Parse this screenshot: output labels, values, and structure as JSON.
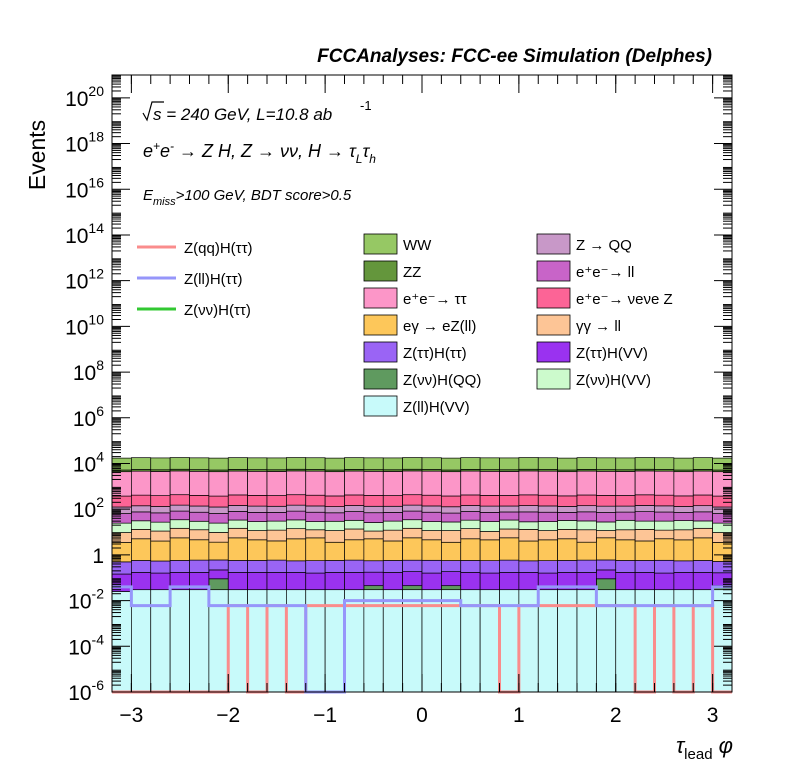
{
  "chart_data": {
    "type": "bar",
    "title": "FCCAnalyses: FCC-ee Simulation (Delphes)",
    "xlabel": "τ_lead φ",
    "ylabel": "Events",
    "yscale": "log",
    "xlim": [
      -3.2,
      3.2
    ],
    "ylim": [
      1e-06,
      1e+21
    ],
    "xticks": [
      "−3",
      "−2",
      "−1",
      "0",
      "1",
      "2",
      "3"
    ],
    "yticks": [
      {
        "base": "10",
        "exp": "-6",
        "value": 1e-06
      },
      {
        "base": "10",
        "exp": "-4",
        "value": 0.0001
      },
      {
        "base": "10",
        "exp": "-2",
        "value": 0.01
      },
      {
        "base": "1",
        "exp": "",
        "value": 1
      },
      {
        "base": "10",
        "exp": "2",
        "value": 100.0
      },
      {
        "base": "10",
        "exp": "4",
        "value": 10000.0
      },
      {
        "base": "10",
        "exp": "6",
        "value": 1000000.0
      },
      {
        "base": "10",
        "exp": "8",
        "value": 100000000.0
      },
      {
        "base": "10",
        "exp": "10",
        "value": 10000000000.0
      },
      {
        "base": "10",
        "exp": "12",
        "value": 1000000000000.0
      },
      {
        "base": "10",
        "exp": "14",
        "value": 100000000000000.0
      },
      {
        "base": "10",
        "exp": "16",
        "value": 1e+16
      },
      {
        "base": "10",
        "exp": "18",
        "value": 1e+18
      },
      {
        "base": "10",
        "exp": "20",
        "value": 1e+20
      }
    ],
    "annotations": [
      "√s = 240 GeV, L=10.8 ab⁻¹",
      "e⁺e⁻ → Z H, Z → νν, H → τ_L τ_h",
      "E_miss>100 GeV, BDT score>0.5"
    ],
    "x_bin_edges": [
      -3.2,
      -3.0,
      -2.8,
      -2.6,
      -2.4,
      -2.2,
      -2.0,
      -1.8,
      -1.6,
      -1.4,
      -1.2,
      -1.0,
      -0.8,
      -0.6,
      -0.4,
      -0.2,
      0.0,
      0.2,
      0.4,
      0.6,
      0.8,
      1.0,
      1.2,
      1.4,
      1.6,
      1.8,
      2.0,
      2.2,
      2.4,
      2.6,
      2.8,
      3.0,
      3.2
    ],
    "stack_order": [
      "Z(ll)H(VV)",
      "Z(νν)H(QQ)",
      "Z(ττ)H(VV)",
      "Z(ττ)H(ττ)",
      "eγ → eZ(ll)",
      "γγ → ll",
      "Z(νν)H(VV)",
      "e⁺e⁻→ ll",
      "Z → QQ",
      "e⁺e⁻→ νeνe Z",
      "e⁺e⁻→ ττ",
      "ZZ",
      "WW"
    ],
    "stacked_series": [
      {
        "name": "Z(ll)H(VV)",
        "color": "#c8fafa",
        "values": [
          0.025,
          0.03,
          0.03,
          0.03,
          0.03,
          0.03,
          0.03,
          0.03,
          0.03,
          0.03,
          0.03,
          0.03,
          0.03,
          0.03,
          0.03,
          0.03,
          0.03,
          0.03,
          0.03,
          0.03,
          0.03,
          0.03,
          0.03,
          0.03,
          0.03,
          0.03,
          0.03,
          0.03,
          0.03,
          0.03,
          0.03,
          0.03
        ]
      },
      {
        "name": "Z(νν)H(QQ)",
        "color": "#5f9a5f",
        "values": [
          0,
          0,
          0,
          0,
          0,
          0.06,
          0,
          0,
          0,
          0,
          0,
          0,
          0,
          0.015,
          0,
          0.015,
          0,
          0.015,
          0,
          0,
          0,
          0,
          0,
          0,
          0,
          0.06,
          0,
          0,
          0,
          0,
          0,
          0.015
        ]
      },
      {
        "name": "Z(ττ)H(VV)",
        "color": "#9a32f0",
        "values": [
          0.12,
          0.14,
          0.13,
          0.14,
          0.14,
          0.13,
          0.14,
          0.14,
          0.14,
          0.14,
          0.13,
          0.14,
          0.14,
          0.13,
          0.14,
          0.14,
          0.13,
          0.14,
          0.14,
          0.13,
          0.14,
          0.14,
          0.13,
          0.14,
          0.14,
          0.13,
          0.14,
          0.14,
          0.13,
          0.14,
          0.14,
          0.12
        ]
      },
      {
        "name": "Z(ττ)H(ττ)",
        "color": "#9a64f5",
        "values": [
          0.35,
          0.4,
          0.38,
          0.4,
          0.42,
          0.38,
          0.4,
          0.4,
          0.42,
          0.38,
          0.4,
          0.4,
          0.42,
          0.38,
          0.4,
          0.4,
          0.42,
          0.38,
          0.4,
          0.4,
          0.42,
          0.38,
          0.4,
          0.4,
          0.42,
          0.38,
          0.4,
          0.4,
          0.42,
          0.38,
          0.4,
          0.35
        ]
      },
      {
        "name": "eγ → eZ(ll)",
        "color": "#fdc75a",
        "values": [
          3,
          4.5,
          3.5,
          5,
          4,
          3,
          5,
          4,
          3.5,
          4.5,
          5,
          3,
          4,
          4.5,
          3.5,
          5,
          4,
          3,
          4.5,
          4,
          5,
          3.5,
          4,
          4.5,
          3,
          5,
          4,
          3.5,
          4.5,
          4,
          5,
          3
        ]
      },
      {
        "name": "γγ → ll",
        "color": "#fdc596",
        "values": [
          6,
          8,
          7,
          9,
          8,
          6,
          9,
          7,
          8,
          9,
          7,
          8,
          9,
          6,
          8,
          9,
          7,
          8,
          9,
          6,
          8,
          9,
          7,
          8,
          9,
          6,
          8,
          9,
          7,
          8,
          9,
          6
        ]
      },
      {
        "name": "Z(νν)H(VV)",
        "color": "#ccfacc",
        "values": [
          15,
          18,
          16,
          20,
          17,
          15,
          19,
          17,
          18,
          20,
          16,
          18,
          19,
          15,
          18,
          20,
          17,
          16,
          19,
          18,
          20,
          15,
          17,
          19,
          18,
          16,
          20,
          17,
          18,
          19,
          16,
          15
        ]
      },
      {
        "name": "e⁺e⁻→ ll",
        "color": "#c864c8",
        "values": [
          40,
          45,
          42,
          48,
          44,
          40,
          46,
          44,
          42,
          48,
          45,
          40,
          46,
          44,
          42,
          48,
          45,
          40,
          46,
          44,
          42,
          48,
          45,
          40,
          46,
          44,
          42,
          48,
          45,
          40,
          46,
          40
        ]
      },
      {
        "name": "Z → QQ",
        "color": "#c898c8",
        "values": [
          60,
          65,
          62,
          68,
          64,
          60,
          66,
          64,
          62,
          68,
          65,
          60,
          66,
          64,
          62,
          68,
          65,
          60,
          66,
          64,
          62,
          68,
          65,
          60,
          66,
          64,
          62,
          68,
          65,
          60,
          66,
          60
        ]
      },
      {
        "name": "e⁺e⁻→ νeνe Z",
        "color": "#fc6496",
        "values": [
          250,
          270,
          260,
          280,
          265,
          250,
          275,
          265,
          260,
          280,
          270,
          250,
          275,
          265,
          260,
          280,
          270,
          250,
          275,
          265,
          260,
          280,
          270,
          250,
          275,
          265,
          260,
          280,
          270,
          250,
          275,
          250
        ]
      },
      {
        "name": "e⁺e⁻→ ττ",
        "color": "#fc96c8",
        "values": [
          4000,
          4200,
          4100,
          4300,
          4150,
          4000,
          4250,
          4150,
          4100,
          4300,
          4200,
          4000,
          4250,
          4150,
          4100,
          4300,
          4200,
          4000,
          4250,
          4150,
          4100,
          4300,
          4200,
          4000,
          4250,
          4150,
          4100,
          4300,
          4200,
          4000,
          4250,
          4000
        ]
      },
      {
        "name": "ZZ",
        "color": "#64963c",
        "values": [
          800,
          850,
          820,
          860,
          830,
          800,
          850,
          830,
          820,
          860,
          840,
          800,
          850,
          830,
          820,
          860,
          840,
          800,
          850,
          830,
          820,
          860,
          840,
          800,
          850,
          830,
          820,
          860,
          840,
          800,
          850,
          800
        ]
      },
      {
        "name": "WW",
        "color": "#96c864",
        "values": [
          12000,
          12500,
          12200,
          12600,
          12300,
          12000,
          12500,
          12300,
          12200,
          12600,
          12400,
          12000,
          12500,
          12300,
          12200,
          12600,
          12400,
          12000,
          12500,
          12300,
          12200,
          12600,
          12400,
          12000,
          12500,
          12300,
          12200,
          12600,
          12400,
          12000,
          12500,
          12000
        ]
      }
    ],
    "line_series": [
      {
        "name": "Z(qq)H(ττ)",
        "color": "#fa8c8c",
        "values": [
          1e-06,
          1e-06,
          1e-06,
          1e-06,
          1e-06,
          1e-06,
          0.006,
          1e-06,
          0.006,
          1e-06,
          0.006,
          0.006,
          0.006,
          0.006,
          0.006,
          0.006,
          0.006,
          0.006,
          0.006,
          0.006,
          1e-06,
          0.006,
          0.006,
          0.006,
          0.006,
          0.006,
          0.006,
          1e-06,
          0.006,
          1e-06,
          0.006,
          1e-06
        ]
      },
      {
        "name": "Z(ll)H(ττ)",
        "color": "#9696fa",
        "values": [
          0.04,
          0.006,
          0.006,
          0.04,
          0.04,
          0.006,
          0.006,
          0.006,
          0.006,
          0.006,
          1e-06,
          1e-06,
          0.01,
          0.01,
          0.01,
          0.01,
          0.01,
          0.01,
          0.006,
          0.006,
          0.006,
          0.006,
          0.04,
          0.04,
          0.04,
          0.006,
          0.006,
          0.006,
          0.006,
          0.006,
          0.006,
          0.04
        ]
      },
      {
        "name": "Z(νν)H(ττ)",
        "color": "#32c832",
        "values": []
      }
    ],
    "legend": {
      "lines": [
        "Z(qq)H(ττ)",
        "Z(ll)H(ττ)",
        "Z(νν)H(ττ)"
      ],
      "boxes_col1": [
        "WW",
        "ZZ",
        "e⁺e⁻→ ττ",
        "eγ → eZ(ll)",
        "Z(ττ)H(ττ)",
        "Z(νν)H(QQ)",
        "Z(ll)H(VV)"
      ],
      "boxes_col2": [
        "Z → QQ",
        "e⁺e⁻→ ll",
        "e⁺e⁻→ νeνe Z",
        "γγ → ll",
        "Z(ττ)H(VV)",
        "Z(νν)H(VV)"
      ]
    }
  }
}
